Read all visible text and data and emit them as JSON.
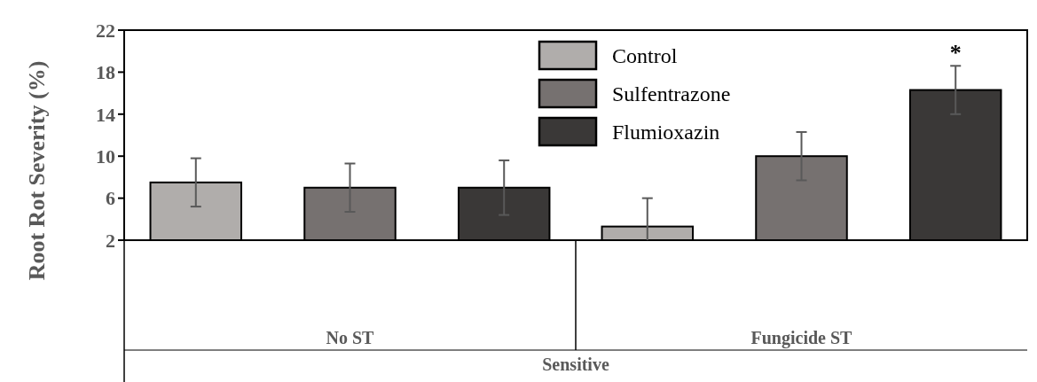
{
  "chart_data": {
    "type": "bar",
    "ylabel": "Root Rot Severity (%)",
    "xlabel": "Sensitive",
    "categories": [
      "No ST",
      "Fungicide ST"
    ],
    "series": [
      {
        "name": "Control",
        "color": "#b0adab",
        "values": [
          7.5,
          3.3
        ],
        "errors": [
          2.3,
          [
            2,
            6.0
          ]
        ]
      },
      {
        "name": "Sulfentrazone",
        "color": "#767170",
        "values": [
          7.0,
          10.0
        ],
        "errors": [
          2.3,
          2.3
        ]
      },
      {
        "name": "Flumioxazin",
        "color": "#3a3837",
        "values": [
          7.0,
          16.3
        ],
        "errors": [
          2.6,
          2.3
        ]
      }
    ],
    "ylim": [
      2,
      22
    ],
    "yticks": [
      2,
      6,
      10,
      14,
      18,
      22
    ],
    "grid": false,
    "legend": "top right",
    "annotations": [
      "*"
    ]
  }
}
